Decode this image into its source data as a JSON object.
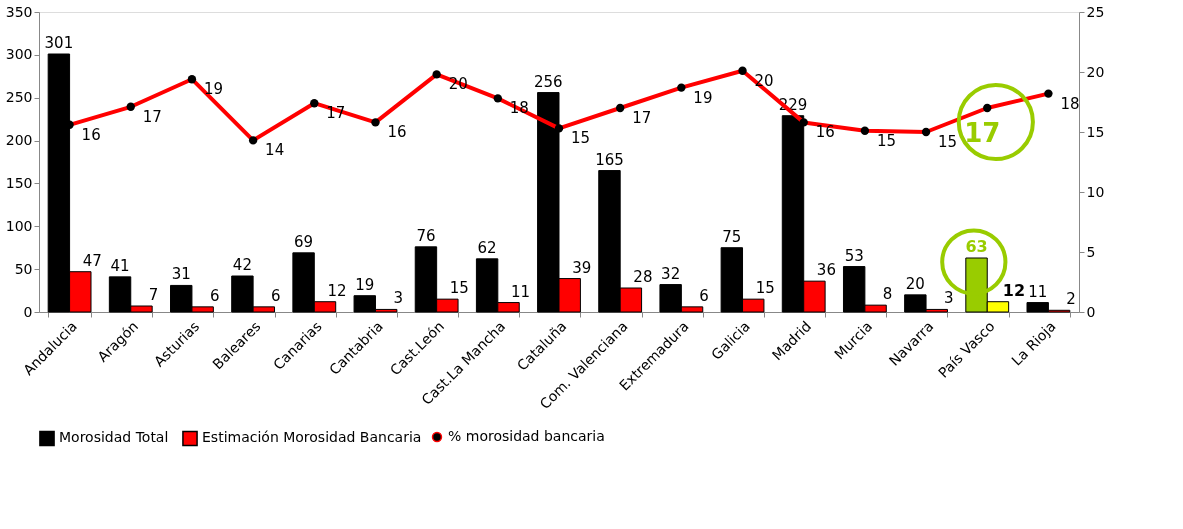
{
  "chart_data": {
    "type": "bar",
    "categories": [
      "Andalucia",
      "Aragón",
      "Asturias",
      "Baleares",
      "Canarias",
      "Cantabria",
      "Cast.León",
      "Cast.La Mancha",
      "Cataluña",
      "Com. Valenciana",
      "Extremadura",
      "Galicia",
      "Madrid",
      "Murcia",
      "Navarra",
      "País Vasco",
      "La Rioja"
    ],
    "series": [
      {
        "name": "Morosidad Total",
        "color": "#000000",
        "values": [
          301,
          41,
          31,
          42,
          69,
          19,
          76,
          62,
          256,
          165,
          32,
          75,
          229,
          53,
          20,
          63,
          11
        ],
        "colors": [
          "#000000",
          "#000000",
          "#000000",
          "#000000",
          "#000000",
          "#000000",
          "#000000",
          "#000000",
          "#000000",
          "#000000",
          "#000000",
          "#000000",
          "#000000",
          "#000000",
          "#000000",
          "#99cc00",
          "#000000"
        ]
      },
      {
        "name": "Estimación Morosidad Bancaria",
        "color": "#ff0000",
        "values": [
          47,
          7,
          6,
          6,
          12,
          3,
          15,
          11,
          39,
          28,
          6,
          15,
          36,
          8,
          3,
          12,
          2
        ],
        "colors": [
          "#ff0000",
          "#ff0000",
          "#ff0000",
          "#ff0000",
          "#ff0000",
          "#ff0000",
          "#ff0000",
          "#ff0000",
          "#ff0000",
          "#ff0000",
          "#ff0000",
          "#ff0000",
          "#ff0000",
          "#ff0000",
          "#ff0000",
          "#ffff00",
          "#ff0000"
        ]
      },
      {
        "name": "% morosidad bancaria",
        "type": "line",
        "axis": "y2",
        "color": "#ff0000",
        "values": [
          15.6,
          17.1,
          19.4,
          14.3,
          17.4,
          15.8,
          19.8,
          17.8,
          15.3,
          17.0,
          18.7,
          20.1,
          15.8,
          15.1,
          15.0,
          17.0,
          18.2
        ],
        "value_labels": [
          "16",
          "17",
          "19",
          "14",
          "17",
          "16",
          "20",
          "18",
          "15",
          "17",
          "19",
          "20",
          "16",
          "15",
          "15",
          "17",
          "18"
        ]
      }
    ],
    "data_labels": true,
    "ylim": [
      0,
      350
    ],
    "yticks": [
      0,
      50,
      100,
      150,
      200,
      250,
      300,
      350
    ],
    "y2lim": [
      0,
      25
    ],
    "y2ticks": [
      0,
      5,
      10,
      15,
      20,
      25
    ],
    "marker": "circle",
    "line_style": "solid",
    "grid": false,
    "legend": "bottom"
  }
}
